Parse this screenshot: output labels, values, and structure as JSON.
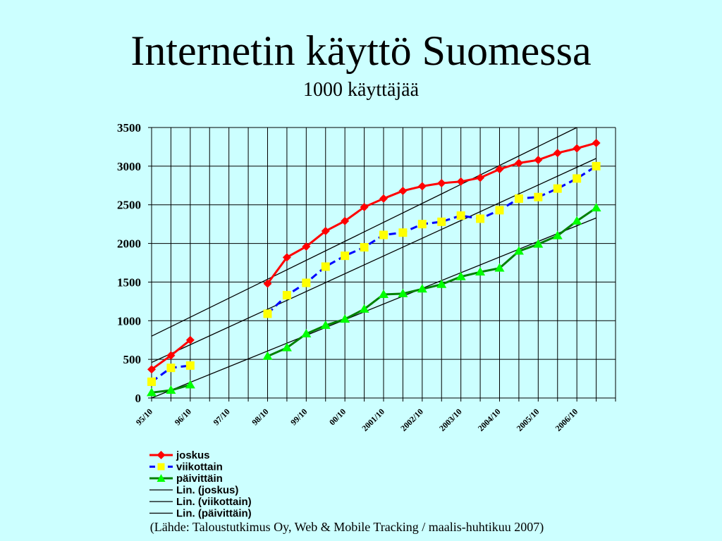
{
  "title": "Internetin käyttö Suomessa",
  "subtitle": "1000 käyttäjää",
  "source": "(Lähde: Taloustutkimus Oy, Web & Mobile Tracking / maalis-huhtikuu 2007)",
  "chart_data": {
    "type": "line",
    "x": [
      "95/10",
      "",
      "96/10",
      "",
      "97/10",
      "",
      "98/10",
      "",
      "99/10",
      "",
      "00/10",
      "",
      "2001/10",
      "",
      "2002/10",
      "",
      "2003/10",
      "",
      "2004/10",
      "",
      "2005/10",
      "",
      "2006/10",
      ""
    ],
    "xlabel": "",
    "ylabel": "",
    "ylim": [
      0,
      3500
    ],
    "yticks": [
      0,
      500,
      1000,
      1500,
      2000,
      2500,
      3000,
      3500
    ],
    "grid": true,
    "legend": "bottom",
    "series": [
      {
        "name": "joskus",
        "color": "#ff0000",
        "marker": "diamond",
        "marker_color": "#ff0000",
        "values": [
          370,
          550,
          750,
          null,
          null,
          null,
          1480,
          1820,
          1960,
          2160,
          2290,
          2470,
          2580,
          2680,
          2740,
          2780,
          2800,
          2850,
          2960,
          3040,
          3080,
          3170,
          3230,
          3300
        ]
      },
      {
        "name": "viikottain",
        "color": "#0000ff",
        "marker": "square",
        "marker_color": "#ffff00",
        "values": [
          210,
          390,
          420,
          null,
          null,
          null,
          1090,
          1330,
          1490,
          1700,
          1840,
          1950,
          2110,
          2140,
          2250,
          2280,
          2360,
          2320,
          2430,
          2580,
          2600,
          2710,
          2840,
          3000
        ]
      },
      {
        "name": "päivittäin",
        "color": "#008000",
        "marker": "triangle",
        "marker_color": "#00ff00",
        "values": [
          70,
          100,
          170,
          null,
          null,
          null,
          540,
          650,
          830,
          940,
          1020,
          1150,
          1340,
          1350,
          1410,
          1470,
          1570,
          1630,
          1680,
          1900,
          1990,
          2100,
          2290,
          2460
        ]
      },
      {
        "name": "Lin. (joskus)",
        "color": "#000000",
        "marker": "none",
        "trend_from_to": [
          800,
          3500
        ],
        "trend_end_index": 23,
        "trend_end_x": 22
      },
      {
        "name": "Lin. (viikottain)",
        "color": "#000000",
        "marker": "none",
        "trend_from_to": [
          460,
          3100
        ],
        "trend_end_index": 23
      },
      {
        "name": "Lin. (päivittäin)",
        "color": "#000000",
        "marker": "none",
        "trend_from_to": [
          0,
          2330
        ],
        "trend_end_index": 23
      }
    ]
  }
}
